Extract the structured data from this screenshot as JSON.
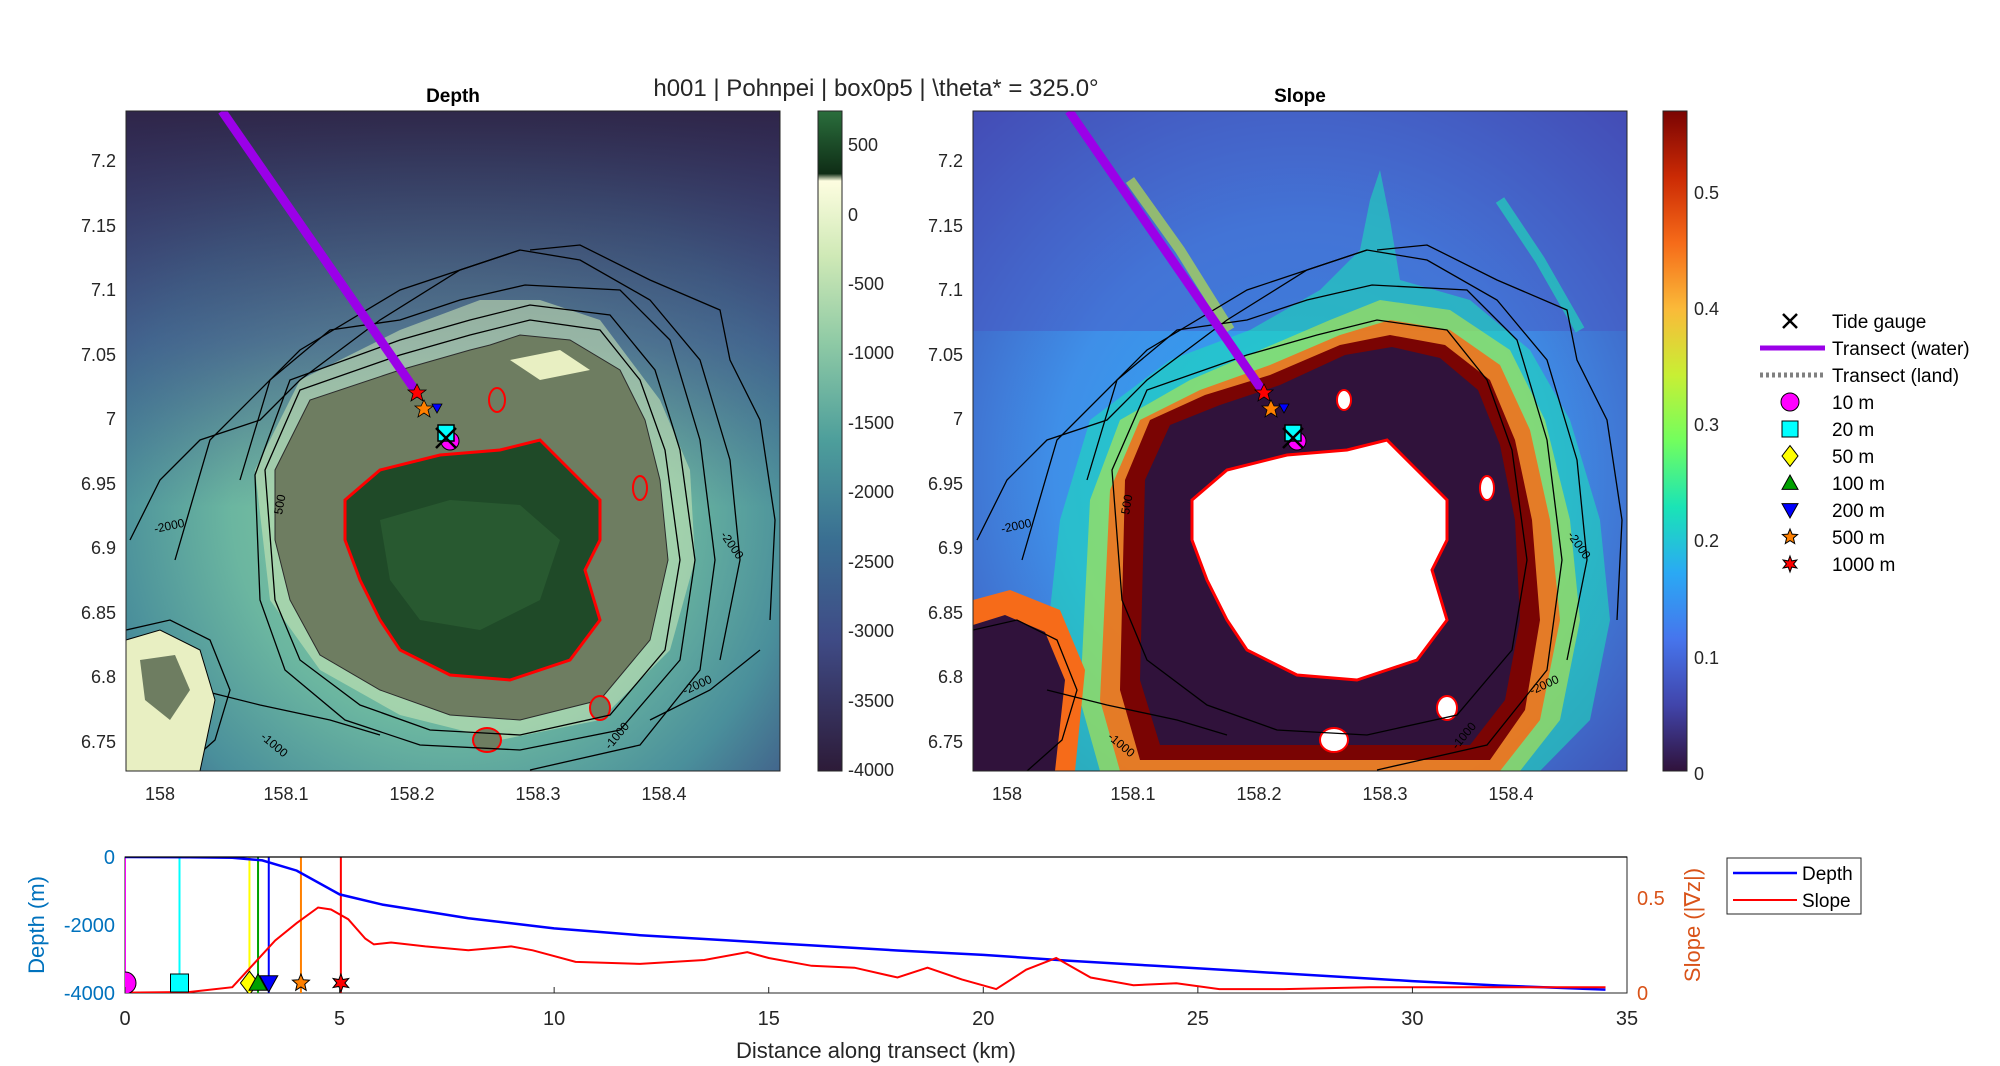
{
  "suptitle": "h001 | Pohnpei | box0p5 | \\theta* = 325.0°",
  "chart_data": [
    {
      "type": "heatmap",
      "title": "Depth",
      "x_ticks": [
        "158",
        "158.1",
        "158.2",
        "158.3",
        "158.4"
      ],
      "y_ticks": [
        "7.2",
        "7.15",
        "7.1",
        "7.05",
        "7",
        "6.95",
        "6.9",
        "6.85",
        "6.8",
        "6.75"
      ],
      "xlim": [
        157.94,
        158.46
      ],
      "ylim": [
        6.725,
        7.238
      ],
      "colorbar_ticks": [
        "500",
        "0",
        "-500",
        "-1000",
        "-1500",
        "-2000",
        "-2500",
        "-3000",
        "-3500",
        "-4000"
      ],
      "contour_labels": [
        "-2000",
        "500",
        "-2000",
        "-2000",
        "-1000",
        "-1000"
      ]
    },
    {
      "type": "heatmap",
      "title": "Slope",
      "x_ticks": [
        "158",
        "158.1",
        "158.2",
        "158.3",
        "158.4"
      ],
      "y_ticks": [
        "7.2",
        "7.15",
        "7.1",
        "7.05",
        "7",
        "6.95",
        "6.9",
        "6.85",
        "6.8",
        "6.75"
      ],
      "xlim": [
        157.94,
        158.46
      ],
      "ylim": [
        6.725,
        7.238
      ],
      "colorbar_ticks": [
        "0.5",
        "0.4",
        "0.3",
        "0.2",
        "0.1",
        "0"
      ],
      "contour_labels": [
        "-2000",
        "500",
        "-2000",
        "-2000",
        "-1000",
        "-1000"
      ]
    },
    {
      "type": "line",
      "xlabel": "Distance along transect (km)",
      "ylabel": "Depth (m)",
      "y2label": "Slope (|∇z|)",
      "xlim": [
        0,
        35
      ],
      "ylim": [
        -4000,
        0
      ],
      "y2lim": [
        0,
        0.7
      ],
      "x_ticks": [
        "0",
        "5",
        "10",
        "15",
        "20",
        "25",
        "30",
        "35"
      ],
      "y_ticks": [
        "0",
        "-2000",
        "-4000"
      ],
      "y2_ticks": [
        "0.5",
        "0"
      ],
      "series": [
        {
          "name": "Depth",
          "color": "#0000ff",
          "x": [
            0,
            1.5,
            2.5,
            3.2,
            4.0,
            5.0,
            6.0,
            7.0,
            8.0,
            9.0,
            10.0,
            11.0,
            12.0,
            14.0,
            16.0,
            18.0,
            20.0,
            22.0,
            24.0,
            26.0,
            28.0,
            30.0,
            32.0,
            34.5
          ],
          "y": [
            0,
            -5,
            -20,
            -100,
            -400,
            -1100,
            -1400,
            -1600,
            -1800,
            -1950,
            -2100,
            -2200,
            -2300,
            -2450,
            -2600,
            -2750,
            -2880,
            -3050,
            -3200,
            -3350,
            -3500,
            -3650,
            -3780,
            -3900
          ]
        },
        {
          "name": "Slope",
          "color": "#ff0000",
          "x": [
            0,
            1.5,
            2.5,
            3.0,
            3.5,
            4.0,
            4.5,
            4.8,
            5.2,
            5.6,
            5.8,
            6.2,
            7.0,
            8.0,
            9.0,
            9.5,
            10.5,
            12.0,
            13.5,
            14.5,
            15.0,
            16.0,
            17.0,
            18.0,
            18.7,
            19.5,
            20.3,
            21.0,
            21.7,
            22.5,
            23.5,
            24.5,
            25.5,
            27.0,
            29.0,
            31.0,
            33.0,
            34.5
          ],
          "y": [
            0.002,
            0.005,
            0.03,
            0.15,
            0.27,
            0.36,
            0.44,
            0.43,
            0.38,
            0.28,
            0.25,
            0.26,
            0.24,
            0.22,
            0.24,
            0.22,
            0.16,
            0.15,
            0.17,
            0.21,
            0.18,
            0.14,
            0.13,
            0.08,
            0.13,
            0.07,
            0.02,
            0.12,
            0.18,
            0.08,
            0.04,
            0.05,
            0.02,
            0.02,
            0.03,
            0.03,
            0.03,
            0.03
          ]
        }
      ],
      "markers": [
        {
          "name": "10 m",
          "x": 0.0,
          "color": "#ff00ff",
          "shape": "circle"
        },
        {
          "name": "20 m",
          "x": 1.27,
          "color": "#00ffff",
          "shape": "square"
        },
        {
          "name": "50 m",
          "x": 2.9,
          "color": "#ffff00",
          "shape": "diamond"
        },
        {
          "name": "100 m",
          "x": 3.1,
          "color": "#00a000",
          "shape": "triangle-up"
        },
        {
          "name": "200 m",
          "x": 3.35,
          "color": "#0000ff",
          "shape": "triangle-down"
        },
        {
          "name": "500 m",
          "x": 4.1,
          "color": "#ff8000",
          "shape": "star"
        },
        {
          "name": "1000 m",
          "x": 5.03,
          "color": "#ff0000",
          "shape": "hexagram"
        }
      ],
      "legend": [
        "Depth",
        "Slope"
      ],
      "legend_position": "right"
    }
  ],
  "map_legend": [
    {
      "label": "Tide gauge",
      "symbol": "x",
      "color": "#000000"
    },
    {
      "label": "Transect (water)",
      "symbol": "line",
      "color": "#9b00e8"
    },
    {
      "label": "Transect (land)",
      "symbol": "dotted-line",
      "color": "#808080"
    },
    {
      "label": "10 m",
      "symbol": "circle",
      "color": "#ff00ff"
    },
    {
      "label": "20 m",
      "symbol": "square",
      "color": "#00ffff"
    },
    {
      "label": "50 m",
      "symbol": "diamond",
      "color": "#ffff00"
    },
    {
      "label": "100 m",
      "symbol": "triangle-up",
      "color": "#00a000"
    },
    {
      "label": "200 m",
      "symbol": "triangle-down",
      "color": "#0000ff"
    },
    {
      "label": "500 m",
      "symbol": "star",
      "color": "#ff8000"
    },
    {
      "label": "1000 m",
      "symbol": "hexagram",
      "color": "#ff0000"
    }
  ]
}
